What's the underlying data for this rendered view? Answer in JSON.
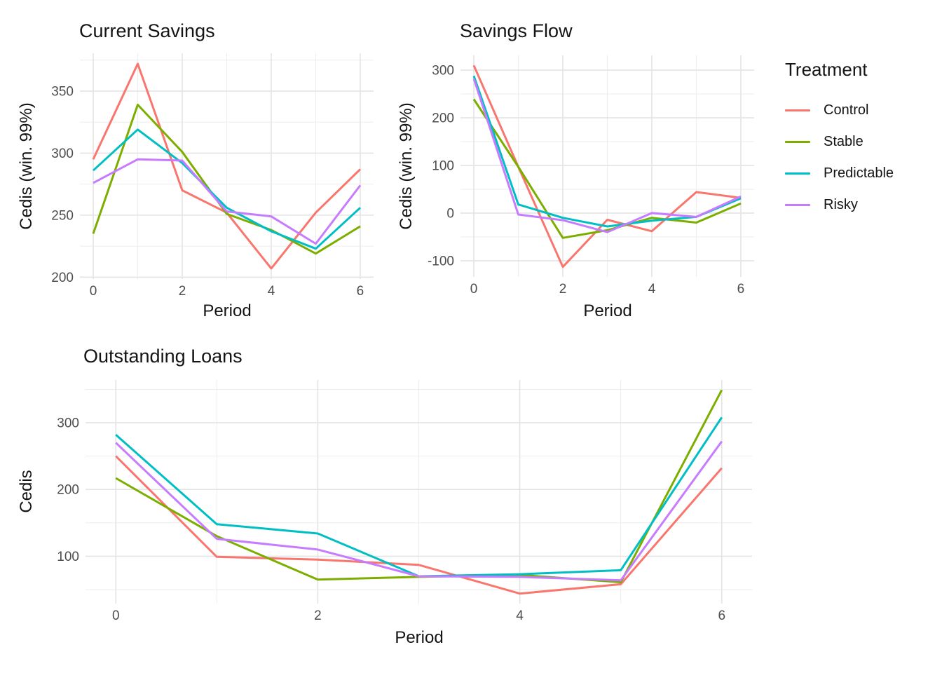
{
  "figure": {
    "background": "#FFFFFF"
  },
  "treatment_colors": {
    "Control": "#F8766D",
    "Stable": "#7CAE00",
    "Predictable": "#00BFC4",
    "Risky": "#C77CFF"
  },
  "legend": {
    "title": "Treatment",
    "position": "right",
    "entries": [
      {
        "label": "Control",
        "color": "#F8766D"
      },
      {
        "label": "Stable",
        "color": "#7CAE00"
      },
      {
        "label": "Predictable",
        "color": "#00BFC4"
      },
      {
        "label": "Risky",
        "color": "#C77CFF"
      }
    ]
  },
  "chart_data": [
    {
      "id": "current-savings",
      "type": "line",
      "title": "Current Savings",
      "xlabel": "Period",
      "ylabel": "Cedis (win. 99%)",
      "x": [
        0,
        1,
        2,
        3,
        4,
        5,
        6
      ],
      "series": [
        {
          "name": "Control",
          "color": "#F8766D",
          "values": [
            295,
            372,
            270,
            252,
            207,
            252,
            287
          ]
        },
        {
          "name": "Stable",
          "color": "#7CAE00",
          "values": [
            235,
            339,
            301,
            251,
            238,
            219,
            241
          ]
        },
        {
          "name": "Predictable",
          "color": "#00BFC4",
          "values": [
            286,
            319,
            292,
            256,
            237,
            223,
            256
          ]
        },
        {
          "name": "Risky",
          "color": "#C77CFF",
          "values": [
            276,
            295,
            294,
            253,
            249,
            227,
            274
          ]
        }
      ],
      "xlim": [
        -0.3,
        6.3
      ],
      "ylim": [
        198.5,
        380.5
      ],
      "xticks": [
        0,
        2,
        4,
        6
      ],
      "xminor": [
        1,
        3,
        5
      ],
      "yticks": [
        200,
        250,
        300,
        350
      ],
      "yminor": [
        225,
        275,
        325,
        375
      ],
      "grid": true
    },
    {
      "id": "savings-flow",
      "type": "line",
      "title": "Savings Flow",
      "xlabel": "Period",
      "ylabel": "Cedis (win. 99%)",
      "x": [
        0,
        1,
        2,
        3,
        4,
        5,
        6
      ],
      "series": [
        {
          "name": "Control",
          "color": "#F8766D",
          "values": [
            310,
            97,
            -113,
            -14,
            -38,
            44,
            32
          ]
        },
        {
          "name": "Stable",
          "color": "#7CAE00",
          "values": [
            239,
            97,
            -52,
            -36,
            -10,
            -20,
            20
          ]
        },
        {
          "name": "Predictable",
          "color": "#00BFC4",
          "values": [
            288,
            18,
            -10,
            -28,
            -16,
            -8,
            31
          ]
        },
        {
          "name": "Risky",
          "color": "#C77CFF",
          "values": [
            282,
            -3,
            -15,
            -40,
            0,
            -8,
            35
          ]
        }
      ],
      "xlim": [
        -0.3,
        6.3
      ],
      "ylim": [
        -134,
        331
      ],
      "xticks": [
        0,
        2,
        4,
        6
      ],
      "xminor": [
        1,
        3,
        5
      ],
      "yticks": [
        -100,
        0,
        100,
        200,
        300
      ],
      "yminor": [
        -50,
        50,
        150,
        250
      ],
      "grid": true
    },
    {
      "id": "outstanding-loans",
      "type": "line",
      "title": "Outstanding Loans",
      "xlabel": "Period",
      "ylabel": "Cedis",
      "x": [
        0,
        1,
        2,
        3,
        4,
        5,
        6
      ],
      "series": [
        {
          "name": "Control",
          "color": "#F8766D",
          "values": [
            250,
            99,
            95,
            87,
            44,
            58,
            232
          ]
        },
        {
          "name": "Stable",
          "color": "#7CAE00",
          "values": [
            217,
            130,
            65,
            69,
            72,
            61,
            349
          ]
        },
        {
          "name": "Predictable",
          "color": "#00BFC4",
          "values": [
            282,
            148,
            134,
            70,
            73,
            79,
            308
          ]
        },
        {
          "name": "Risky",
          "color": "#C77CFF",
          "values": [
            270,
            126,
            110,
            70,
            69,
            64,
            272
          ]
        }
      ],
      "xlim": [
        -0.3,
        6.3
      ],
      "ylim": [
        29,
        364
      ],
      "xticks": [
        0,
        2,
        4,
        6
      ],
      "xminor": [
        1,
        3,
        5
      ],
      "yticks": [
        100,
        200,
        300
      ],
      "yminor": [
        50,
        150,
        250,
        350
      ],
      "grid": true
    }
  ]
}
